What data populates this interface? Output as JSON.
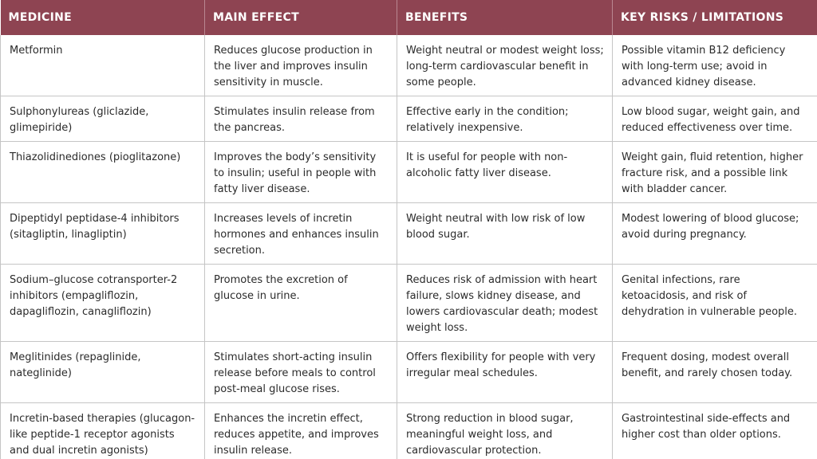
{
  "table": {
    "headers": [
      "MEDICINE",
      "MAIN EFFECT",
      "BENEFITS",
      "KEY RISKS / LIMITATIONS"
    ],
    "header_color": "#8e4452",
    "rows": [
      {
        "medicine": "Metformin",
        "effect": "Reduces glucose production in the liver and improves insulin sensitivity in muscle.",
        "benefits": "Weight neutral or modest weight loss; long-term cardiovascular benefit in some people.",
        "risks": "Possible vitamin B12 deficiency with long-term use; avoid in advanced kidney disease."
      },
      {
        "medicine": "Sulphonylureas (gliclazide, glimepiride)",
        "effect": "Stimulates insulin release from the pancreas.",
        "benefits": "Effective early in the condition; relatively inexpensive.",
        "risks": "Low blood sugar, weight gain, and reduced effectiveness over time."
      },
      {
        "medicine": "Thiazolidinediones (pioglitazone)",
        "effect": "Improves the body’s sensitivity to insulin; useful in people with fatty liver disease.",
        "benefits": "It is useful for people with non-alcoholic fatty liver disease.",
        "risks": "Weight gain, fluid retention, higher fracture risk, and a possible link with bladder cancer."
      },
      {
        "medicine": "Dipeptidyl peptidase-4 inhibitors (sitagliptin, linagliptin)",
        "effect": "Increases levels of incretin hormones and enhances insulin secretion.",
        "benefits": "Weight neutral with low risk of low blood sugar.",
        "risks": "Modest lowering of blood glucose; avoid during pregnancy."
      },
      {
        "medicine": "Sodium–glucose cotransporter-2 inhibitors (empagliflozin, dapagliflozin, canagliflozin)",
        "effect": "Promotes the excretion of glucose in urine.",
        "benefits": "Reduces risk of admission with heart failure, slows kidney disease, and lowers cardiovascular death; modest weight loss.",
        "risks": "Genital infections, rare ketoacidosis, and risk of dehydration in vulnerable people."
      },
      {
        "medicine": "Meglitinides (repaglinide, nateglinide)",
        "effect": "Stimulates short-acting insulin release before meals to control post-meal glucose rises.",
        "benefits": "Offers flexibility for people with very irregular meal schedules.",
        "risks": "Frequent dosing, modest overall benefit, and rarely chosen today."
      },
      {
        "medicine": "Incretin-based therapies (glucagon-like peptide-1 receptor agonists and dual incretin agonists)",
        "effect": "Enhances the incretin effect, reduces appetite, and improves insulin release.",
        "benefits": "Strong reduction in blood sugar, meaningful weight loss, and cardiovascular protection.",
        "risks": "Gastrointestinal side-effects and higher cost than older options."
      }
    ]
  }
}
